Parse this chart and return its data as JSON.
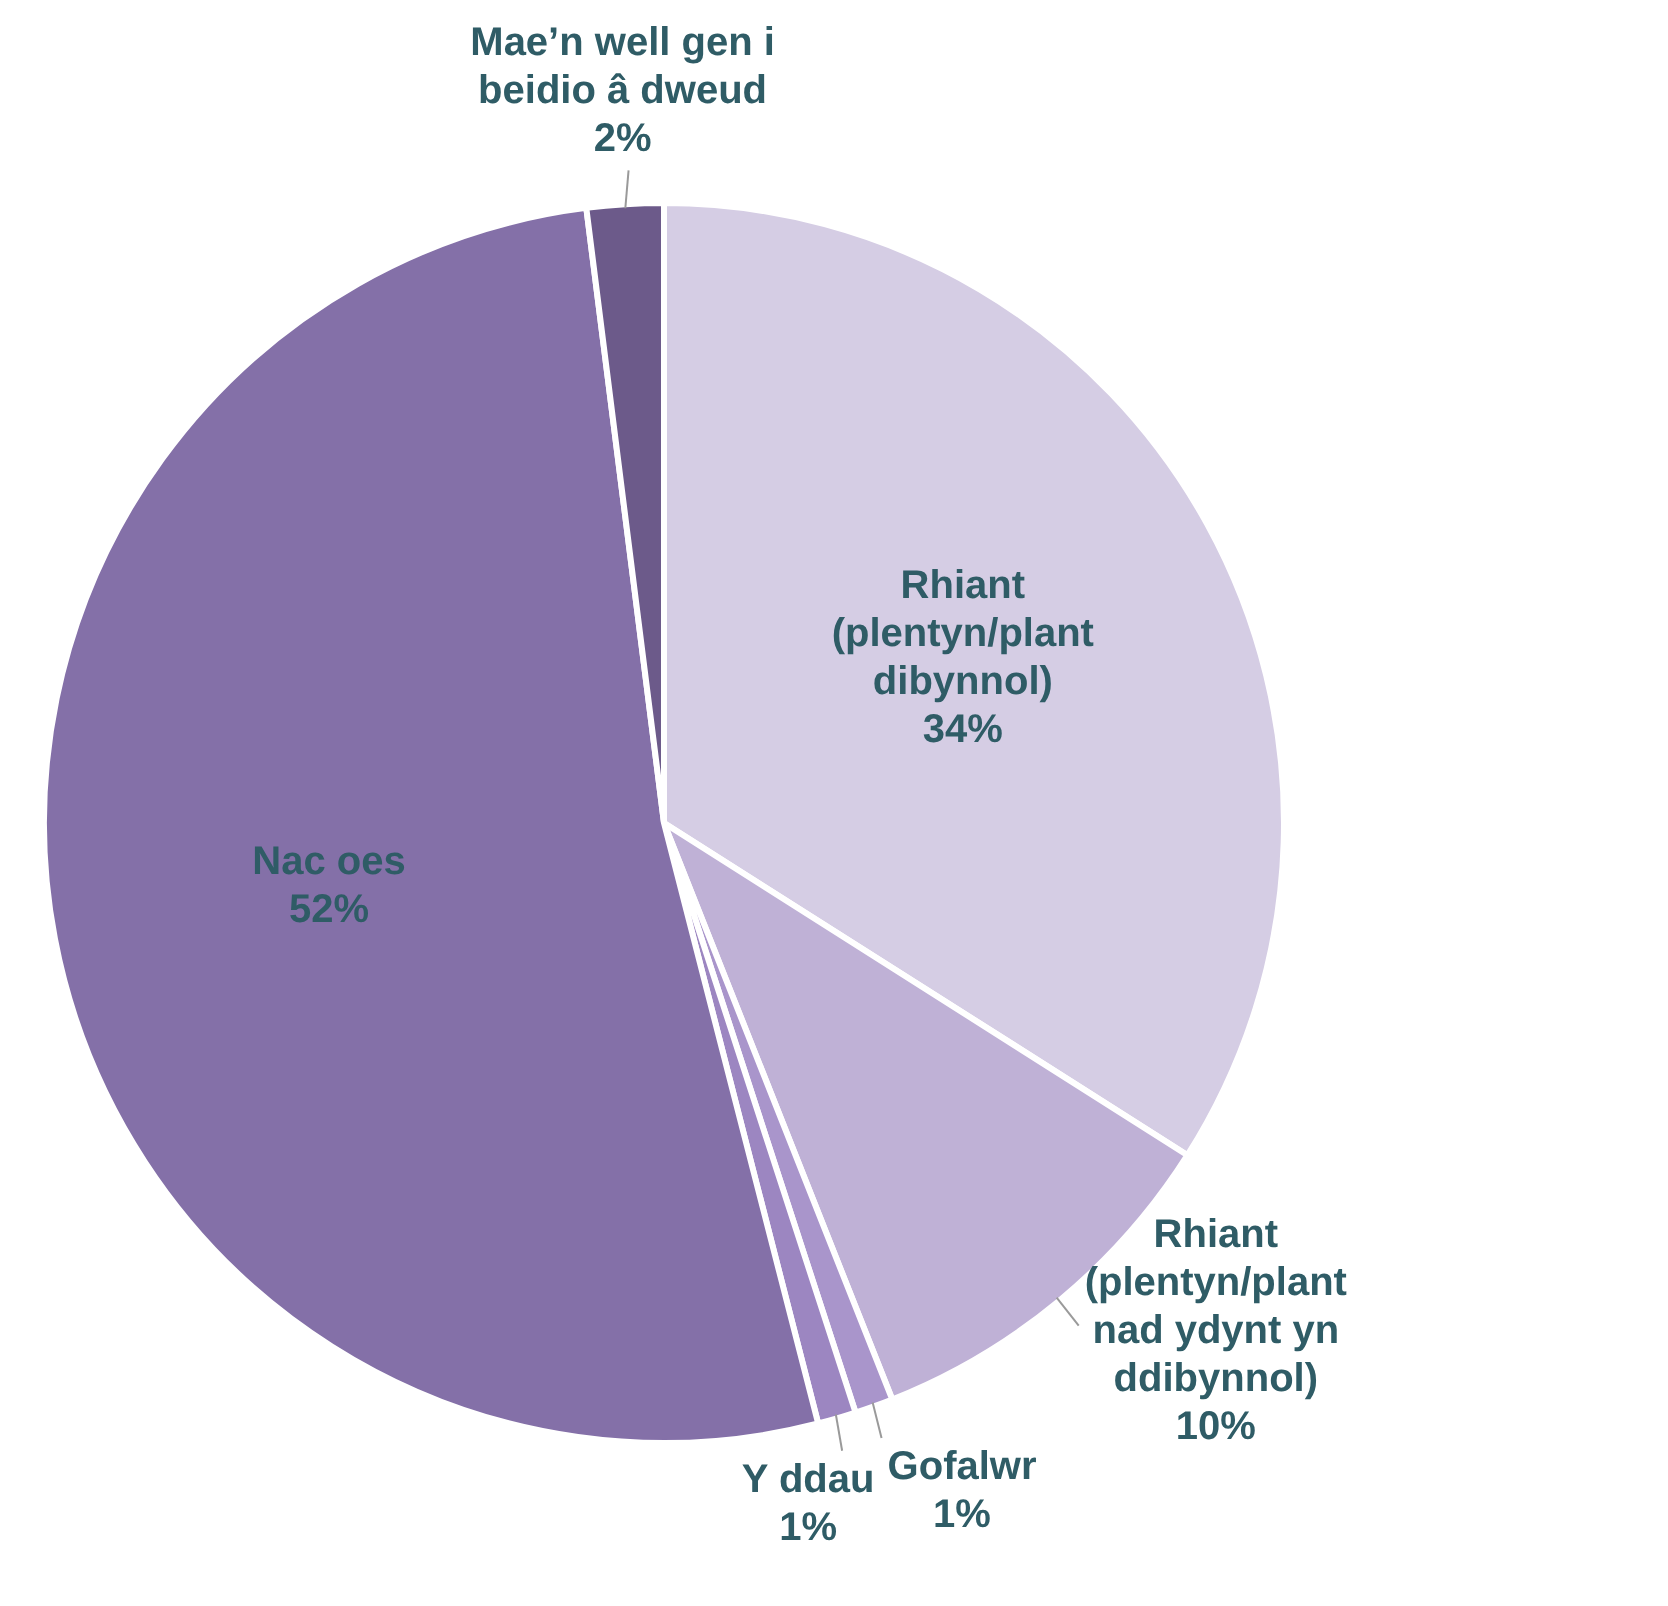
{
  "chart_data": {
    "type": "pie",
    "categories": [
      "Rhiant (plentyn/plant dibynnol)",
      "Rhiant (plentyn/plant nad ydynt yn ddibynnol)",
      "Gofalwr",
      "Y ddau",
      "Nac oes",
      "Mae’n well gen i beidio â dweud"
    ],
    "values": [
      34,
      10,
      1,
      1,
      52,
      2
    ],
    "value_labels": [
      "34%",
      "10%",
      "1%",
      "1%",
      "52%",
      "2%"
    ],
    "colors": [
      "#d5cde4",
      "#bfb1d6",
      "#a995cb",
      "#9c86c1",
      "#8470a8",
      "#6c5a8a"
    ],
    "legend": false
  }
}
